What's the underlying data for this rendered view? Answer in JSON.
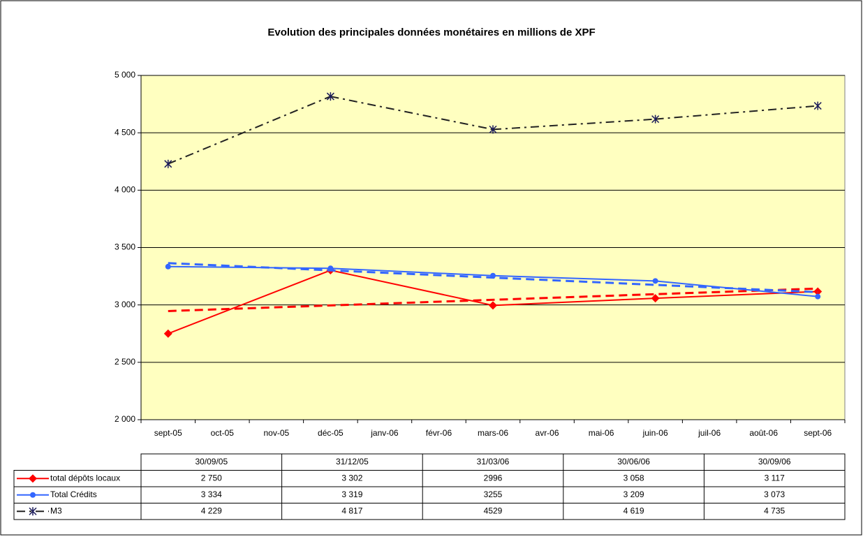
{
  "chart_data": {
    "type": "line",
    "title": "Evolution des principales données monétaires en millions de XPF",
    "categories": [
      "sept-05",
      "oct-05",
      "nov-05",
      "déc-05",
      "janv-06",
      "févr-06",
      "mars-06",
      "avr-06",
      "mai-06",
      "juin-06",
      "juil-06",
      "août-06",
      "sept-06"
    ],
    "ylim": [
      2000,
      5000
    ],
    "yticks": [
      {
        "value": 2000,
        "label": "2 000"
      },
      {
        "value": 2500,
        "label": "2 500"
      },
      {
        "value": 3000,
        "label": "3 000"
      },
      {
        "value": 3500,
        "label": "3 500"
      },
      {
        "value": 4000,
        "label": "4 000"
      },
      {
        "value": 4500,
        "label": "4 500"
      },
      {
        "value": 5000,
        "label": "5 000"
      }
    ],
    "grid": true,
    "plot_background": "#ffffc0",
    "table_columns": [
      "30/09/05",
      "31/12/05",
      "31/03/06",
      "30/06/06",
      "30/09/06"
    ],
    "series": [
      {
        "name": "total dépôts locaux",
        "color": "#ff0000",
        "marker": "diamond",
        "dash": "solid",
        "trendline": "linear",
        "values": [
          2750,
          null,
          null,
          3302,
          null,
          null,
          2996,
          null,
          null,
          3058,
          null,
          null,
          3117
        ],
        "value_labels": [
          "2 750",
          null,
          null,
          "3 302",
          null,
          null,
          "2996",
          null,
          null,
          "3 058",
          null,
          null,
          "3 117"
        ]
      },
      {
        "name": "Total Crédits",
        "color": "#3366ff",
        "marker": "circle",
        "dash": "solid",
        "trendline": "linear",
        "values": [
          3334,
          null,
          null,
          3319,
          null,
          null,
          3255,
          null,
          null,
          3209,
          null,
          null,
          3073
        ],
        "value_labels": [
          "3 334",
          null,
          null,
          "3 319",
          null,
          null,
          "3255",
          null,
          null,
          "3 209",
          null,
          null,
          "3 073"
        ]
      },
      {
        "name": "M3",
        "color": "#222222",
        "marker": "star",
        "dash": "dashdot",
        "trendline": null,
        "values": [
          4229,
          null,
          null,
          4817,
          null,
          null,
          4529,
          null,
          null,
          4619,
          null,
          null,
          4735
        ],
        "value_labels": [
          "4 229",
          null,
          null,
          "4 817",
          null,
          null,
          "4529",
          null,
          null,
          "4 619",
          null,
          null,
          "4 735"
        ]
      }
    ]
  }
}
